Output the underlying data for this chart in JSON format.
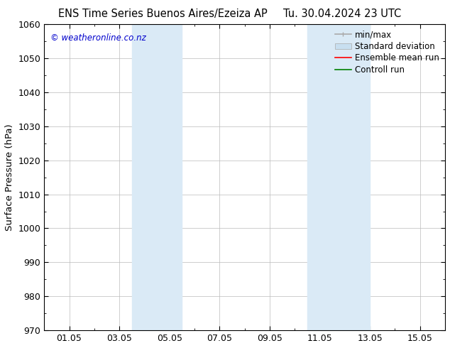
{
  "title_left": "ENS Time Series Buenos Aires/Ezeiza AP",
  "title_right": "Tu. 30.04.2024 23 UTC",
  "ylabel": "Surface Pressure (hPa)",
  "ylim": [
    970,
    1060
  ],
  "yticks": [
    970,
    980,
    990,
    1000,
    1010,
    1020,
    1030,
    1040,
    1050,
    1060
  ],
  "xticks_labels": [
    "01.05",
    "03.05",
    "05.05",
    "07.05",
    "09.05",
    "11.05",
    "13.05",
    "15.05"
  ],
  "xticks_positions": [
    1,
    3,
    5,
    7,
    9,
    11,
    13,
    15
  ],
  "xlim": [
    0,
    16
  ],
  "shaded_bands": [
    {
      "x_start": 3.5,
      "x_end": 5.5
    },
    {
      "x_start": 10.5,
      "x_end": 13.0
    }
  ],
  "shaded_color": "#daeaf6",
  "watermark": "© weatheronline.co.nz",
  "watermark_color": "#0000cc",
  "background_color": "#ffffff",
  "plot_bg_color": "#ffffff",
  "grid_color": "#bbbbbb",
  "title_fontsize": 10.5,
  "tick_fontsize": 9,
  "ylabel_fontsize": 9.5,
  "legend_fontsize": 8.5,
  "legend_color_minmax": "#aaaaaa",
  "legend_color_std": "#c8dff0",
  "legend_color_ensemble": "#ff0000",
  "legend_color_control": "#008000"
}
